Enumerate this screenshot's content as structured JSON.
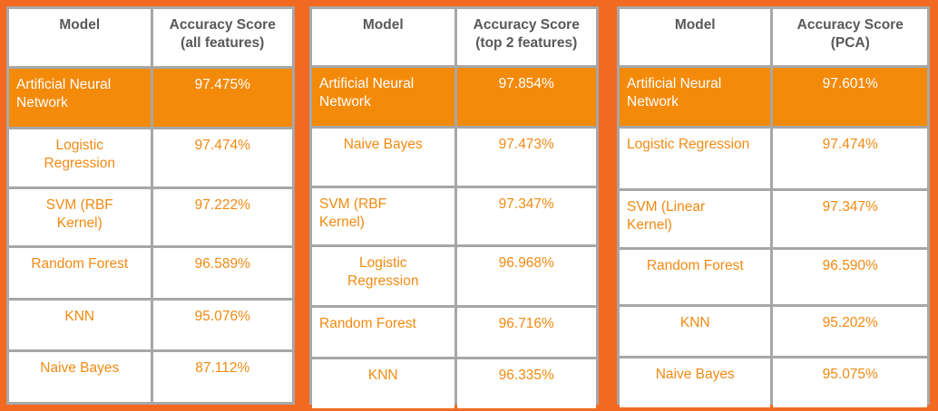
{
  "tables": [
    {
      "headers": [
        "Model",
        "Accuracy Score\n(all features)"
      ],
      "header_lines": [
        [
          "Model"
        ],
        [
          "Accuracy Score",
          "(all features)"
        ]
      ],
      "rows": [
        {
          "model": [
            "Artificial Neural",
            "Network"
          ],
          "score": "97.475%",
          "highlight": true,
          "align": "left"
        },
        {
          "model": [
            "Logistic",
            "Regression"
          ],
          "score": "97.474%",
          "highlight": false,
          "align": "center"
        },
        {
          "model": [
            "SVM (RBF",
            "Kernel)"
          ],
          "score": "97.222%",
          "highlight": false,
          "align": "center"
        },
        {
          "model": [
            "Random Forest"
          ],
          "score": "96.589%",
          "highlight": false,
          "align": "center"
        },
        {
          "model": [
            "KNN"
          ],
          "score": "95.076%",
          "highlight": false,
          "align": "center"
        },
        {
          "model": [
            "Naive Bayes"
          ],
          "score": "87.112%",
          "highlight": false,
          "align": "center"
        }
      ]
    },
    {
      "headers": [
        "Model",
        "Accuracy Score\n(top 2 features)"
      ],
      "header_lines": [
        [
          "Model"
        ],
        [
          "Accuracy Score",
          "(top 2 features)"
        ]
      ],
      "rows": [
        {
          "model": [
            "Artificial Neural",
            "Network"
          ],
          "score": "97.854%",
          "highlight": true,
          "align": "left"
        },
        {
          "model": [
            "Naive Bayes"
          ],
          "score": "97.473%",
          "highlight": false,
          "align": "center"
        },
        {
          "model": [
            "SVM (RBF",
            "Kernel)"
          ],
          "score": "97.347%",
          "highlight": false,
          "align": "left"
        },
        {
          "model": [
            "Logistic",
            "Regression"
          ],
          "score": "96.968%",
          "highlight": false,
          "align": "center"
        },
        {
          "model": [
            "Random Forest"
          ],
          "score": "96.716%",
          "highlight": false,
          "align": "left"
        },
        {
          "model": [
            "KNN"
          ],
          "score": "96.335%",
          "highlight": false,
          "align": "center"
        }
      ]
    },
    {
      "headers": [
        "Model",
        "Accuracy Score\n(PCA)"
      ],
      "header_lines": [
        [
          "Model"
        ],
        [
          "Accuracy Score",
          "(PCA)"
        ]
      ],
      "rows": [
        {
          "model": [
            "Artificial Neural",
            "Network"
          ],
          "score": "97.601%",
          "highlight": true,
          "align": "left"
        },
        {
          "model": [
            "Logistic Regression"
          ],
          "score": "97.474%",
          "highlight": false,
          "align": "left"
        },
        {
          "model": [
            "SVM (Linear",
            "Kernel)"
          ],
          "score": "97.347%",
          "highlight": false,
          "align": "left"
        },
        {
          "model": [
            "Random Forest"
          ],
          "score": "96.590%",
          "highlight": false,
          "align": "center"
        },
        {
          "model": [
            "KNN"
          ],
          "score": "95.202%",
          "highlight": false,
          "align": "center"
        },
        {
          "model": [
            "Naive Bayes"
          ],
          "score": "95.075%",
          "highlight": false,
          "align": "center"
        }
      ]
    }
  ],
  "colors": {
    "background": "#f26a21",
    "highlight_row": "#f48a0a",
    "score_text": "#f28a12",
    "header_text": "#595959",
    "grid": "#a7a7a7"
  }
}
